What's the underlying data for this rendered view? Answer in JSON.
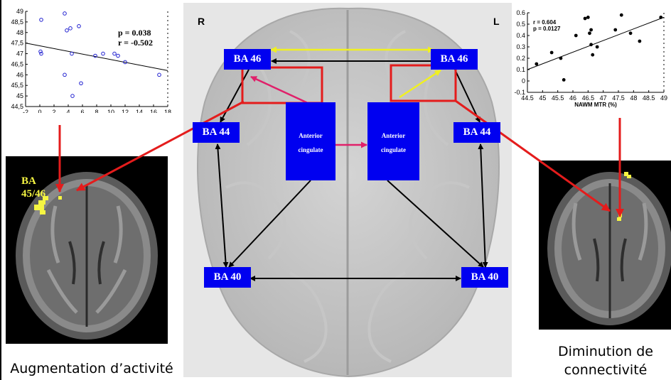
{
  "brain": {
    "right_label": "R",
    "left_label": "L",
    "boxes": {
      "ba46_r": "BA 46",
      "ba46_l": "BA 46",
      "ba44_r": "BA 44",
      "ba44_l": "BA 44",
      "ba40_r": "BA 40",
      "ba40_l": "BA 40",
      "ac_r_line1": "Anterior",
      "ac_r_line2": "cingulate",
      "ac_l_line1": "Anterior",
      "ac_l_line2": "cingulate"
    }
  },
  "left_mri": {
    "label_line1": "BA",
    "label_line2": "45/46"
  },
  "captions": {
    "left": "Augmentation d’activité",
    "right_line1": "Diminution de",
    "right_line2": "connectivité"
  },
  "colors": {
    "box_blue": "#0000f0",
    "roi_red": "#e41c1c",
    "arrow_yellow": "#f0f020",
    "arrow_pink": "#e0206a",
    "activation": "#f5f542"
  },
  "chart_data": [
    {
      "type": "scatter",
      "marker": "open-circle",
      "x_ticks": [
        "-2",
        "0",
        "2",
        "4",
        "6",
        "8",
        "10",
        "12",
        "14",
        "16",
        "18"
      ],
      "y_ticks": [
        "49",
        "48,5",
        "48",
        "47,5",
        "47",
        "46,5",
        "46",
        "45,5",
        "45",
        "44,5"
      ],
      "xlim": [
        -2,
        18
      ],
      "ylim": [
        44.5,
        49
      ],
      "stats": [
        "p = 0.038",
        "r = -0.502"
      ],
      "points": [
        {
          "x": 0.2,
          "y": 48.6
        },
        {
          "x": 3.5,
          "y": 48.9
        },
        {
          "x": 3.8,
          "y": 48.1
        },
        {
          "x": 4.3,
          "y": 48.2
        },
        {
          "x": 5.5,
          "y": 48.3
        },
        {
          "x": 0.1,
          "y": 47.1
        },
        {
          "x": 0.2,
          "y": 47.0
        },
        {
          "x": 4.5,
          "y": 47.0
        },
        {
          "x": 7.8,
          "y": 46.9
        },
        {
          "x": 8.9,
          "y": 47.0
        },
        {
          "x": 10.5,
          "y": 47.0
        },
        {
          "x": 11.0,
          "y": 46.9
        },
        {
          "x": 12.0,
          "y": 46.6
        },
        {
          "x": 3.5,
          "y": 46.0
        },
        {
          "x": 5.8,
          "y": 45.6
        },
        {
          "x": 4.6,
          "y": 45.0
        },
        {
          "x": 16.8,
          "y": 46.0
        }
      ],
      "fit": [
        {
          "x": -2,
          "y": 47.5
        },
        {
          "x": 18,
          "y": 46.2
        }
      ]
    },
    {
      "type": "scatter",
      "marker": "filled-circle",
      "x_ticks": [
        "44.5",
        "45",
        "45.5",
        "46",
        "46.5",
        "47",
        "47.5",
        "48",
        "48.5",
        "49"
      ],
      "y_ticks": [
        "0.6",
        "0.5",
        "0.4",
        "0.3",
        "0.2",
        "0.1",
        "0",
        "-0.1"
      ],
      "xlim": [
        44.5,
        49
      ],
      "ylim": [
        -0.1,
        0.6
      ],
      "xlabel": "NAWM MTR (%)",
      "stats": [
        "r = 0.604",
        "p = 0.0127"
      ],
      "points": [
        {
          "x": 44.8,
          "y": 0.15
        },
        {
          "x": 45.3,
          "y": 0.25
        },
        {
          "x": 45.6,
          "y": 0.2
        },
        {
          "x": 45.7,
          "y": 0.01
        },
        {
          "x": 46.1,
          "y": 0.4
        },
        {
          "x": 46.4,
          "y": 0.55
        },
        {
          "x": 46.5,
          "y": 0.56
        },
        {
          "x": 46.55,
          "y": 0.42
        },
        {
          "x": 46.6,
          "y": 0.45
        },
        {
          "x": 46.6,
          "y": 0.32
        },
        {
          "x": 46.65,
          "y": 0.23
        },
        {
          "x": 46.8,
          "y": 0.3
        },
        {
          "x": 47.4,
          "y": 0.45
        },
        {
          "x": 47.6,
          "y": 0.58
        },
        {
          "x": 47.9,
          "y": 0.42
        },
        {
          "x": 48.2,
          "y": 0.35
        },
        {
          "x": 48.9,
          "y": 0.56
        }
      ],
      "fit": [
        {
          "x": 44.5,
          "y": 0.1
        },
        {
          "x": 49,
          "y": 0.56
        }
      ]
    }
  ]
}
